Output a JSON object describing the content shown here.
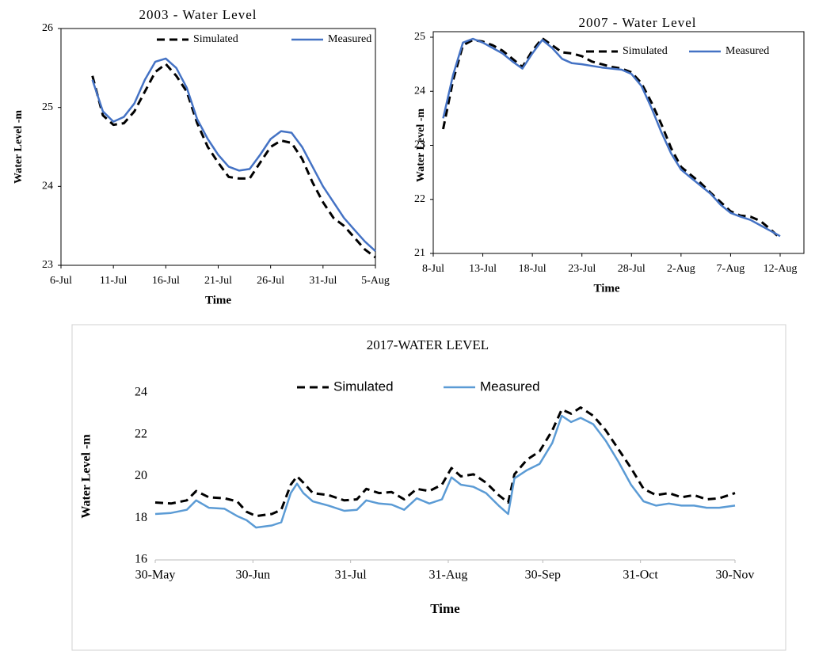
{
  "chart_data": [
    {
      "type": "line",
      "title": "2003  - Water Level",
      "x_label": "Time",
      "y_label": "Water Level -m",
      "x": [
        "9-Jul",
        "10-Jul",
        "11-Jul",
        "12-Jul",
        "13-Jul",
        "14-Jul",
        "15-Jul",
        "16-Jul",
        "17-Jul",
        "18-Jul",
        "19-Jul",
        "20-Jul",
        "21-Jul",
        "22-Jul",
        "23-Jul",
        "24-Jul",
        "25-Jul",
        "26-Jul",
        "27-Jul",
        "28-Jul",
        "29-Jul",
        "30-Jul",
        "31-Jul",
        "1-Aug",
        "2-Aug",
        "3-Aug",
        "4-Aug",
        "5-Aug"
      ],
      "series": [
        {
          "name": "Simulated",
          "color": "#000000",
          "line_style": "dashed",
          "values": [
            25.4,
            24.9,
            24.78,
            24.8,
            24.95,
            25.2,
            25.45,
            25.55,
            25.4,
            25.2,
            24.8,
            24.5,
            24.3,
            24.12,
            24.1,
            24.1,
            24.3,
            24.5,
            24.58,
            24.55,
            24.35,
            24.05,
            23.8,
            23.6,
            23.5,
            23.35,
            23.2,
            23.1
          ]
        },
        {
          "name": "Measured",
          "color": "#4472c4",
          "line_style": "solid",
          "values": [
            25.35,
            24.95,
            24.82,
            24.88,
            25.05,
            25.35,
            25.58,
            25.62,
            25.5,
            25.25,
            24.85,
            24.6,
            24.4,
            24.25,
            24.2,
            24.22,
            24.4,
            24.6,
            24.7,
            24.68,
            24.5,
            24.25,
            24.0,
            23.8,
            23.6,
            23.45,
            23.3,
            23.18
          ]
        }
      ],
      "xlim": [
        "6-Jul",
        "5-Aug"
      ],
      "xticks": [
        "6-Jul",
        "11-Jul",
        "16-Jul",
        "21-Jul",
        "26-Jul",
        "31-Jul",
        "5-Aug"
      ],
      "ylim": [
        23,
        26
      ],
      "yticks": [
        23,
        24,
        25,
        26
      ],
      "legend": "top"
    },
    {
      "type": "line",
      "title": "2007  - Water Level",
      "x_label": "Time",
      "y_label": "Water Level -m",
      "x": [
        "9-Jul",
        "10-Jul",
        "11-Jul",
        "12-Jul",
        "13-Jul",
        "14-Jul",
        "15-Jul",
        "16-Jul",
        "17-Jul",
        "18-Jul",
        "19-Jul",
        "20-Jul",
        "21-Jul",
        "22-Jul",
        "23-Jul",
        "24-Jul",
        "25-Jul",
        "26-Jul",
        "27-Jul",
        "28-Jul",
        "29-Jul",
        "30-Jul",
        "31-Jul",
        "1-Aug",
        "2-Aug",
        "3-Aug",
        "4-Aug",
        "5-Aug",
        "6-Aug",
        "7-Aug",
        "8-Aug",
        "9-Aug",
        "10-Aug",
        "11-Aug",
        "12-Aug"
      ],
      "series": [
        {
          "name": "Simulated",
          "color": "#000000",
          "line_style": "dashed",
          "values": [
            23.3,
            24.2,
            24.85,
            24.95,
            24.92,
            24.85,
            24.75,
            24.6,
            24.45,
            24.75,
            24.98,
            24.85,
            24.72,
            24.7,
            24.65,
            24.55,
            24.5,
            24.45,
            24.42,
            24.35,
            24.15,
            23.8,
            23.4,
            22.95,
            22.6,
            22.45,
            22.3,
            22.12,
            21.95,
            21.78,
            21.7,
            21.68,
            21.6,
            21.45,
            21.28
          ]
        },
        {
          "name": "Measured",
          "color": "#4472c4",
          "line_style": "solid",
          "values": [
            23.5,
            24.3,
            24.9,
            24.97,
            24.9,
            24.8,
            24.7,
            24.55,
            24.42,
            24.7,
            24.95,
            24.8,
            24.6,
            24.52,
            24.5,
            24.47,
            24.44,
            24.42,
            24.4,
            24.32,
            24.1,
            23.7,
            23.25,
            22.85,
            22.55,
            22.4,
            22.25,
            22.1,
            21.9,
            21.75,
            21.68,
            21.62,
            21.52,
            21.42,
            21.32
          ]
        }
      ],
      "xlim": [
        "8-Jul",
        "12-Aug"
      ],
      "xticks": [
        "8-Jul",
        "13-Jul",
        "18-Jul",
        "23-Jul",
        "28-Jul",
        "2-Aug",
        "7-Aug",
        "12-Aug"
      ],
      "ylim": [
        21,
        25
      ],
      "yticks": [
        21,
        22,
        23,
        24,
        25
      ],
      "legend": "top-right"
    },
    {
      "type": "line",
      "title": "2017-WATER LEVEL",
      "x_label": "Time",
      "y_label": "Water Level -m",
      "x": [
        "30-May",
        "4-Jun",
        "9-Jun",
        "12-Jun",
        "16-Jun",
        "21-Jun",
        "25-Jun",
        "28-Jun",
        "1-Jul",
        "6-Jul",
        "9-Jul",
        "12-Jul",
        "14-Jul",
        "16-Jul",
        "19-Jul",
        "24-Jul",
        "29-Jul",
        "2-Aug",
        "5-Aug",
        "9-Aug",
        "13-Aug",
        "17-Aug",
        "21-Aug",
        "25-Aug",
        "29-Aug",
        "1-Sep",
        "4-Sep",
        "8-Sep",
        "12-Sep",
        "16-Sep",
        "19-Sep",
        "21-Sep",
        "25-Sep",
        "29-Sep",
        "3-Oct",
        "6-Oct",
        "9-Oct",
        "12-Oct",
        "16-Oct",
        "20-Oct",
        "24-Oct",
        "28-Oct",
        "1-Nov",
        "5-Nov",
        "9-Nov",
        "13-Nov",
        "17-Nov",
        "21-Nov",
        "25-Nov",
        "30-Nov"
      ],
      "series": [
        {
          "name": "Simulated",
          "color": "#000000",
          "line_style": "dashed",
          "values": [
            18.75,
            18.7,
            18.85,
            19.3,
            19.0,
            18.95,
            18.8,
            18.3,
            18.1,
            18.2,
            18.4,
            19.6,
            20.0,
            19.7,
            19.2,
            19.1,
            18.85,
            18.9,
            19.4,
            19.2,
            19.25,
            18.9,
            19.4,
            19.3,
            19.6,
            20.4,
            20.0,
            20.1,
            19.7,
            19.1,
            18.75,
            20.1,
            20.8,
            21.2,
            22.2,
            23.2,
            23.0,
            23.3,
            22.9,
            22.2,
            21.3,
            20.4,
            19.4,
            19.1,
            19.2,
            19.0,
            19.1,
            18.9,
            18.95,
            19.2
          ]
        },
        {
          "name": "Measured",
          "color": "#5b9bd5",
          "line_style": "solid",
          "values": [
            18.2,
            18.25,
            18.4,
            18.85,
            18.5,
            18.45,
            18.1,
            17.9,
            17.55,
            17.65,
            17.8,
            19.2,
            19.65,
            19.2,
            18.8,
            18.6,
            18.35,
            18.4,
            18.85,
            18.7,
            18.65,
            18.4,
            18.95,
            18.7,
            18.9,
            19.95,
            19.6,
            19.5,
            19.2,
            18.6,
            18.2,
            19.9,
            20.3,
            20.6,
            21.6,
            22.9,
            22.6,
            22.8,
            22.5,
            21.7,
            20.7,
            19.6,
            18.8,
            18.6,
            18.7,
            18.6,
            18.6,
            18.5,
            18.5,
            18.6
          ]
        }
      ],
      "xlim": [
        "30-May",
        "30-Nov"
      ],
      "xticks": [
        "30-May",
        "30-Jun",
        "31-Jul",
        "31-Aug",
        "30-Sep",
        "31-Oct",
        "30-Nov"
      ],
      "ylim": [
        16,
        24
      ],
      "yticks": [
        16,
        18,
        20,
        22,
        24
      ],
      "legend": "top"
    }
  ]
}
